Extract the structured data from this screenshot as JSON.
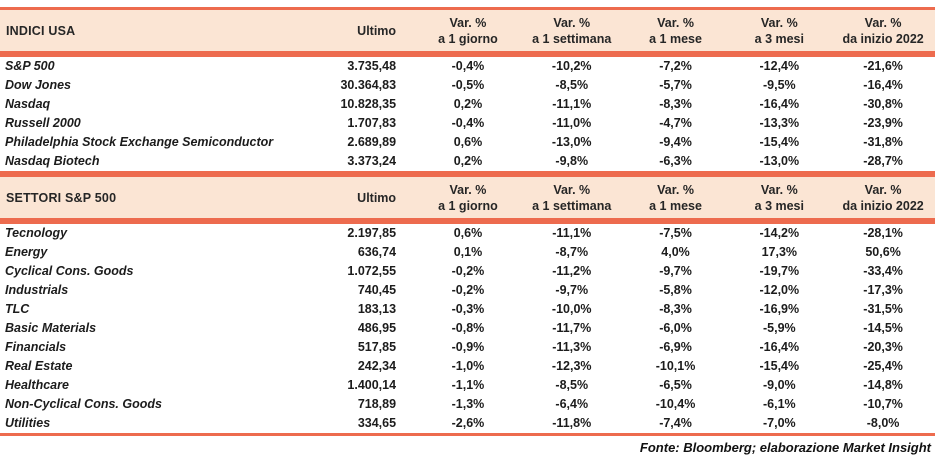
{
  "colors": {
    "accent_line": "#ED6B4E",
    "header_bg": "#FBE5D4",
    "text": "#1C1C1C"
  },
  "table": {
    "col_headers": {
      "ultimo": "Ultimo",
      "var_label": "Var. %",
      "periods": [
        "a 1 giorno",
        "a 1 settimana",
        "a 1 mese",
        "a 3 mesi",
        "da inizio 2022"
      ]
    },
    "sections": [
      {
        "title": "INDICI USA",
        "rows": [
          {
            "name": "S&P 500",
            "ultimo": "3.735,48",
            "v": [
              "-0,4%",
              "-10,2%",
              "-7,2%",
              "-12,4%",
              "-21,6%"
            ]
          },
          {
            "name": "Dow Jones",
            "ultimo": "30.364,83",
            "v": [
              "-0,5%",
              "-8,5%",
              "-5,7%",
              "-9,5%",
              "-16,4%"
            ]
          },
          {
            "name": "Nasdaq",
            "ultimo": "10.828,35",
            "v": [
              "0,2%",
              "-11,1%",
              "-8,3%",
              "-16,4%",
              "-30,8%"
            ]
          },
          {
            "name": "Russell 2000",
            "ultimo": "1.707,83",
            "v": [
              "-0,4%",
              "-11,0%",
              "-4,7%",
              "-13,3%",
              "-23,9%"
            ]
          },
          {
            "name": "Philadelphia Stock Exchange Semiconductor",
            "ultimo": "2.689,89",
            "v": [
              "0,6%",
              "-13,0%",
              "-9,4%",
              "-15,4%",
              "-31,8%"
            ]
          },
          {
            "name": "Nasdaq Biotech",
            "ultimo": "3.373,24",
            "v": [
              "0,2%",
              "-9,8%",
              "-6,3%",
              "-13,0%",
              "-28,7%"
            ]
          }
        ]
      },
      {
        "title": "SETTORI S&P 500",
        "rows": [
          {
            "name": "Tecnology",
            "ultimo": "2.197,85",
            "v": [
              "0,6%",
              "-11,1%",
              "-7,5%",
              "-14,2%",
              "-28,1%"
            ]
          },
          {
            "name": "Energy",
            "ultimo": "636,74",
            "v": [
              "0,1%",
              "-8,7%",
              "4,0%",
              "17,3%",
              "50,6%"
            ]
          },
          {
            "name": "Cyclical Cons. Goods",
            "ultimo": "1.072,55",
            "v": [
              "-0,2%",
              "-11,2%",
              "-9,7%",
              "-19,7%",
              "-33,4%"
            ]
          },
          {
            "name": "Industrials",
            "ultimo": "740,45",
            "v": [
              "-0,2%",
              "-9,7%",
              "-5,8%",
              "-12,0%",
              "-17,3%"
            ]
          },
          {
            "name": "TLC",
            "ultimo": "183,13",
            "v": [
              "-0,3%",
              "-10,0%",
              "-8,3%",
              "-16,9%",
              "-31,5%"
            ]
          },
          {
            "name": "Basic Materials",
            "ultimo": "486,95",
            "v": [
              "-0,8%",
              "-11,7%",
              "-6,0%",
              "-5,9%",
              "-14,5%"
            ]
          },
          {
            "name": "Financials",
            "ultimo": "517,85",
            "v": [
              "-0,9%",
              "-11,3%",
              "-6,9%",
              "-16,4%",
              "-20,3%"
            ]
          },
          {
            "name": "Real Estate",
            "ultimo": "242,34",
            "v": [
              "-1,0%",
              "-12,3%",
              "-10,1%",
              "-15,4%",
              "-25,4%"
            ]
          },
          {
            "name": "Healthcare",
            "ultimo": "1.400,14",
            "v": [
              "-1,1%",
              "-8,5%",
              "-6,5%",
              "-9,0%",
              "-14,8%"
            ]
          },
          {
            "name": "Non-Cyclical Cons. Goods",
            "ultimo": "718,89",
            "v": [
              "-1,3%",
              "-6,4%",
              "-10,4%",
              "-6,1%",
              "-10,7%"
            ]
          },
          {
            "name": "Utilities",
            "ultimo": "334,65",
            "v": [
              "-2,6%",
              "-11,8%",
              "-7,4%",
              "-7,0%",
              "-8,0%"
            ]
          }
        ]
      }
    ],
    "footer": "Fonte: Bloomberg; elaborazione Market Insight"
  }
}
